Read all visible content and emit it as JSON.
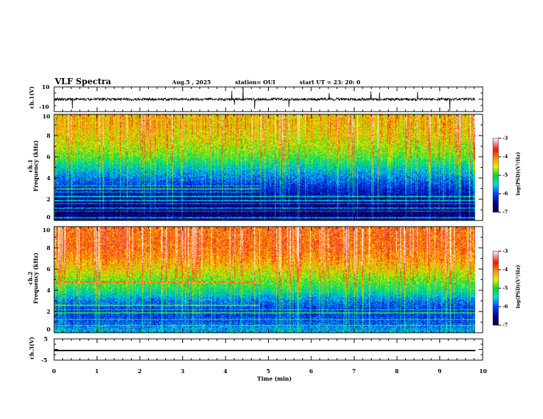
{
  "header": {
    "title": "VLF Spectra",
    "date": "Aug.5  , 2025",
    "station": "station= OUI",
    "start": "start  UT  =   23: 20: 0"
  },
  "chart_data": [
    {
      "type": "line",
      "name": "ch1-waveform",
      "ylabel": "ch.1(V)",
      "ylim": [
        -10,
        10
      ],
      "yticks": [
        "10",
        "-10"
      ],
      "xlim": [
        0,
        10
      ],
      "data_end_min": 9.83,
      "baseline": 0
    },
    {
      "type": "heatmap",
      "name": "ch1-spectrogram",
      "ylabel": "ch.1\nFrequency (kHz)",
      "ylim": [
        0,
        10
      ],
      "yticks": [
        "0",
        "2",
        "4",
        "6",
        "8",
        "10"
      ],
      "xlim": [
        0,
        10
      ],
      "freq_khz": [
        0,
        1,
        2,
        3,
        4,
        5,
        6,
        7,
        8,
        9,
        10
      ],
      "mean_log_psd": [
        -6.6,
        -6.8,
        -6.5,
        -6.3,
        -5.9,
        -5.5,
        -5.0,
        -4.7,
        -4.5,
        -4.4,
        -4.4
      ],
      "colorbar": {
        "label": "log(PSD)(V²/Hz)",
        "range": [
          -7,
          -3
        ],
        "ticks": [
          "-3",
          "-4",
          "-5",
          "-6",
          "-7"
        ]
      }
    },
    {
      "type": "heatmap",
      "name": "ch2-spectrogram",
      "ylabel": "ch.2\nFrequency (kHz)",
      "ylim": [
        0,
        10
      ],
      "yticks": [
        "0",
        "2",
        "4",
        "6",
        "8",
        "10"
      ],
      "xlim": [
        0,
        10
      ],
      "freq_khz": [
        0,
        1,
        2,
        3,
        4,
        5,
        6,
        7,
        8,
        9,
        10
      ],
      "mean_log_psd": [
        -5.6,
        -6.0,
        -6.2,
        -5.9,
        -5.3,
        -4.9,
        -4.5,
        -4.2,
        -4.0,
        -4.0,
        -4.0
      ],
      "colorbar": {
        "label": "log(PSD)(V²/Hz)",
        "range": [
          -7,
          -3
        ],
        "ticks": [
          "-3",
          "-4",
          "-5",
          "-6",
          "-7"
        ]
      }
    },
    {
      "type": "line",
      "name": "ch3-waveform",
      "ylabel": "ch.3(V)",
      "ylim": [
        -5,
        5
      ],
      "yticks": [
        "5",
        "-5"
      ],
      "xlim": [
        0,
        10
      ],
      "constant_value": -0.5
    },
    {
      "type": "axis",
      "xlabel": "Time  (min)",
      "xticks": [
        "0",
        "1",
        "2",
        "3",
        "4",
        "5",
        "6",
        "7",
        "8",
        "9",
        "10"
      ]
    }
  ]
}
